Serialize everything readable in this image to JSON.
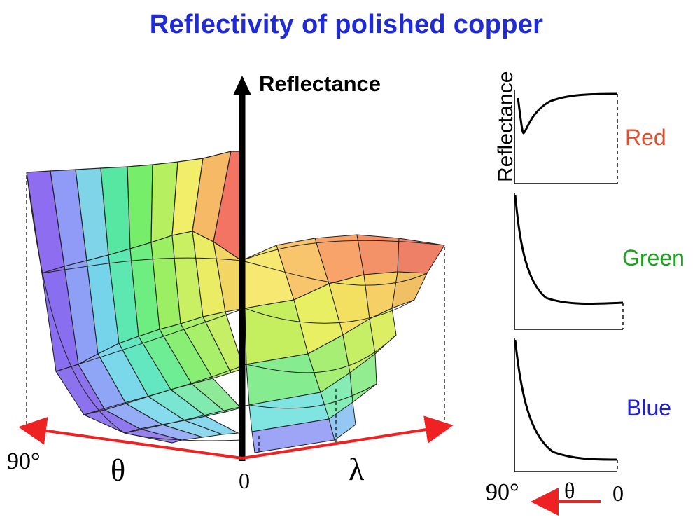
{
  "title": "Reflectivity of polished copper",
  "main_plot": {
    "z_axis_label": "Reflectance",
    "theta_symbol": "θ",
    "lambda_symbol": "λ",
    "angle_90_label": "90°",
    "origin_label": "0"
  },
  "side_plots": {
    "ylabel": "Reflectance",
    "angle_90_label": "90°",
    "theta_symbol": "θ",
    "angle_0_label": "0",
    "channels": [
      {
        "name": "Red",
        "color": "#e0502f"
      },
      {
        "name": "Green",
        "color": "#20a020"
      },
      {
        "name": "Blue",
        "color": "#2020d0"
      }
    ]
  },
  "colors": {
    "title": "#1f2bd8",
    "arrow": "#ee2222"
  }
}
